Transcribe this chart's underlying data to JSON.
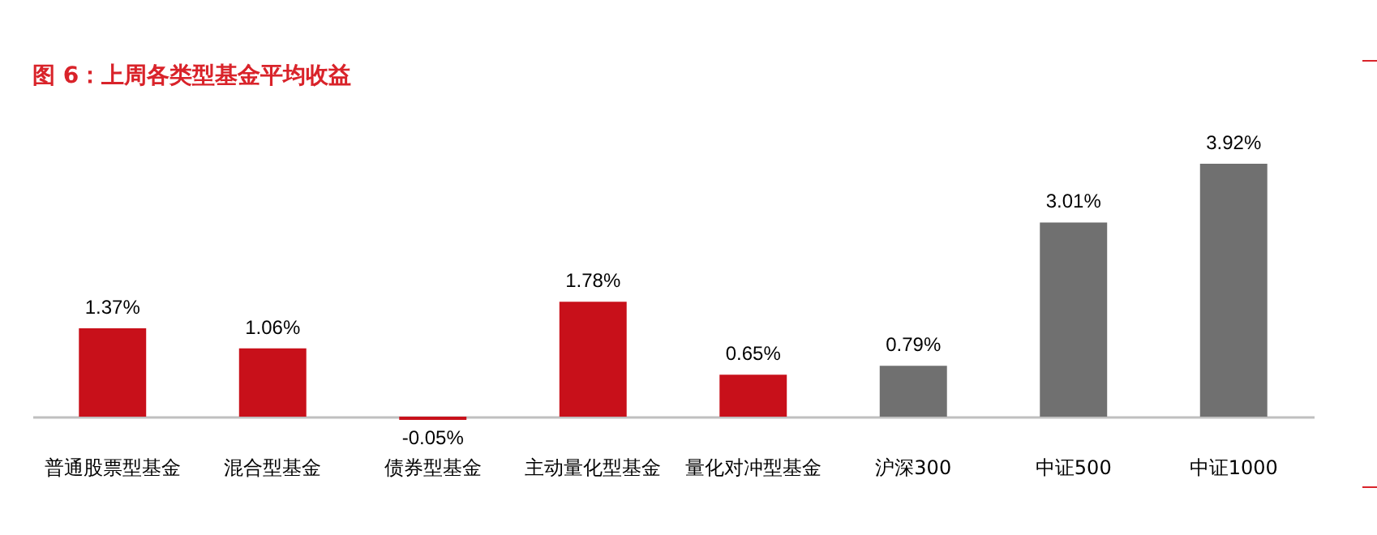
{
  "chart_data": {
    "type": "bar",
    "title": "图 6：上周各类型基金平均收益",
    "categories": [
      "普通股票型基金",
      "混合型基金",
      "债券型基金",
      "主动量化型基金",
      "量化对冲型基金",
      "沪深300",
      "中证500",
      "中证1000"
    ],
    "values": [
      1.37,
      1.06,
      -0.05,
      1.78,
      0.65,
      0.79,
      3.01,
      3.92
    ],
    "colors": [
      "#c8101a",
      "#c8101a",
      "#c8101a",
      "#c8101a",
      "#c8101a",
      "#707070",
      "#707070",
      "#707070"
    ],
    "value_labels": [
      "1.37%",
      "1.06%",
      "-0.05%",
      "1.78%",
      "0.65%",
      "0.79%",
      "3.01%",
      "3.92%"
    ]
  }
}
